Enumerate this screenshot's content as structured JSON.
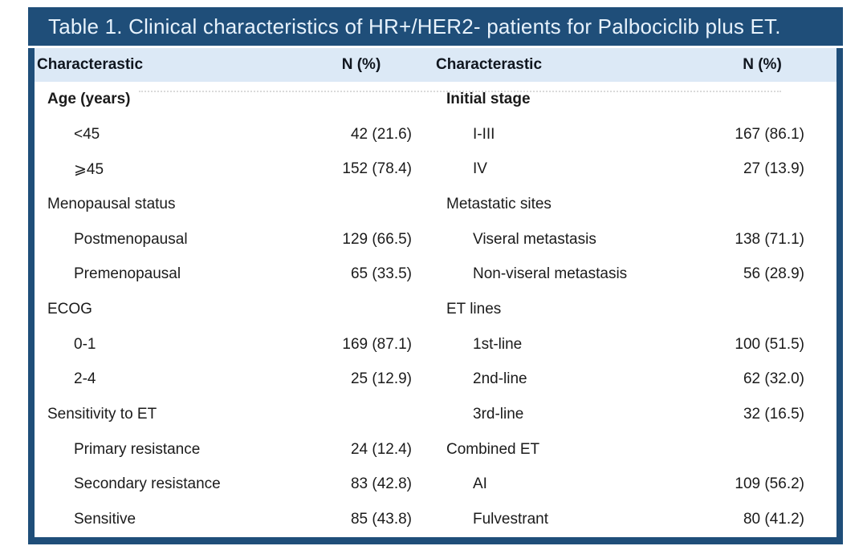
{
  "title": "Table 1. Clinical characteristics of HR+/HER2- patients for Palbociclib plus ET.",
  "colors": {
    "navy": "#1f4e79",
    "header_bg": "#dce9f6",
    "title_text": "#e7f2fc",
    "body_text": "#1b1b1b"
  },
  "header": {
    "col1": "Characterastic",
    "col2": "N (%)",
    "col3": "Characterastic",
    "col4": "N (%)"
  },
  "rows": [
    {
      "left": {
        "label": "Age (years)",
        "value": "",
        "type": "group",
        "bold": true
      },
      "right": {
        "label": "Initial stage",
        "value": "",
        "type": "group",
        "bold": true
      }
    },
    {
      "left": {
        "label": "<45",
        "value": "42 (21.6)",
        "type": "sub",
        "bold": false
      },
      "right": {
        "label": "I-III",
        "value": "167 (86.1)",
        "type": "sub",
        "bold": false
      }
    },
    {
      "left": {
        "label": "⩾45",
        "value": "152 (78.4)",
        "type": "sub",
        "bold": false
      },
      "right": {
        "label": "IV",
        "value": "27 (13.9)",
        "type": "sub",
        "bold": false
      }
    },
    {
      "left": {
        "label": "Menopausal status",
        "value": "",
        "type": "group",
        "bold": false
      },
      "right": {
        "label": "Metastatic sites",
        "value": "",
        "type": "group",
        "bold": false
      }
    },
    {
      "left": {
        "label": "Postmenopausal",
        "value": "129 (66.5)",
        "type": "sub",
        "bold": false
      },
      "right": {
        "label": "Viseral metastasis",
        "value": "138 (71.1)",
        "type": "sub",
        "bold": false
      }
    },
    {
      "left": {
        "label": "Premenopausal",
        "value": "65 (33.5)",
        "type": "sub",
        "bold": false
      },
      "right": {
        "label": "Non-viseral metastasis",
        "value": "56 (28.9)",
        "type": "sub",
        "bold": false
      }
    },
    {
      "left": {
        "label": "ECOG",
        "value": "",
        "type": "group",
        "bold": false
      },
      "right": {
        "label": "ET lines",
        "value": "",
        "type": "group",
        "bold": false
      }
    },
    {
      "left": {
        "label": "0-1",
        "value": "169 (87.1)",
        "type": "sub",
        "bold": false
      },
      "right": {
        "label": "1st-line",
        "value": "100 (51.5)",
        "type": "sub",
        "bold": false
      }
    },
    {
      "left": {
        "label": "2-4",
        "value": "25 (12.9)",
        "type": "sub",
        "bold": false
      },
      "right": {
        "label": "2nd-line",
        "value": "62 (32.0)",
        "type": "sub",
        "bold": false
      }
    },
    {
      "left": {
        "label": "Sensitivity to ET",
        "value": "",
        "type": "group",
        "bold": false
      },
      "right": {
        "label": "3rd-line",
        "value": "32 (16.5)",
        "type": "sub",
        "bold": false
      }
    },
    {
      "left": {
        "label": "Primary resistance",
        "value": "24 (12.4)",
        "type": "sub",
        "bold": false
      },
      "right": {
        "label": "Combined ET",
        "value": "",
        "type": "group",
        "bold": false
      }
    },
    {
      "left": {
        "label": "Secondary resistance",
        "value": "83 (42.8)",
        "type": "sub",
        "bold": false
      },
      "right": {
        "label": "AI",
        "value": "109 (56.2)",
        "type": "sub",
        "bold": false
      }
    },
    {
      "left": {
        "label": "Sensitive",
        "value": "85 (43.8)",
        "type": "sub",
        "bold": false
      },
      "right": {
        "label": "Fulvestrant",
        "value": "80 (41.2)",
        "type": "sub",
        "bold": false
      }
    }
  ]
}
